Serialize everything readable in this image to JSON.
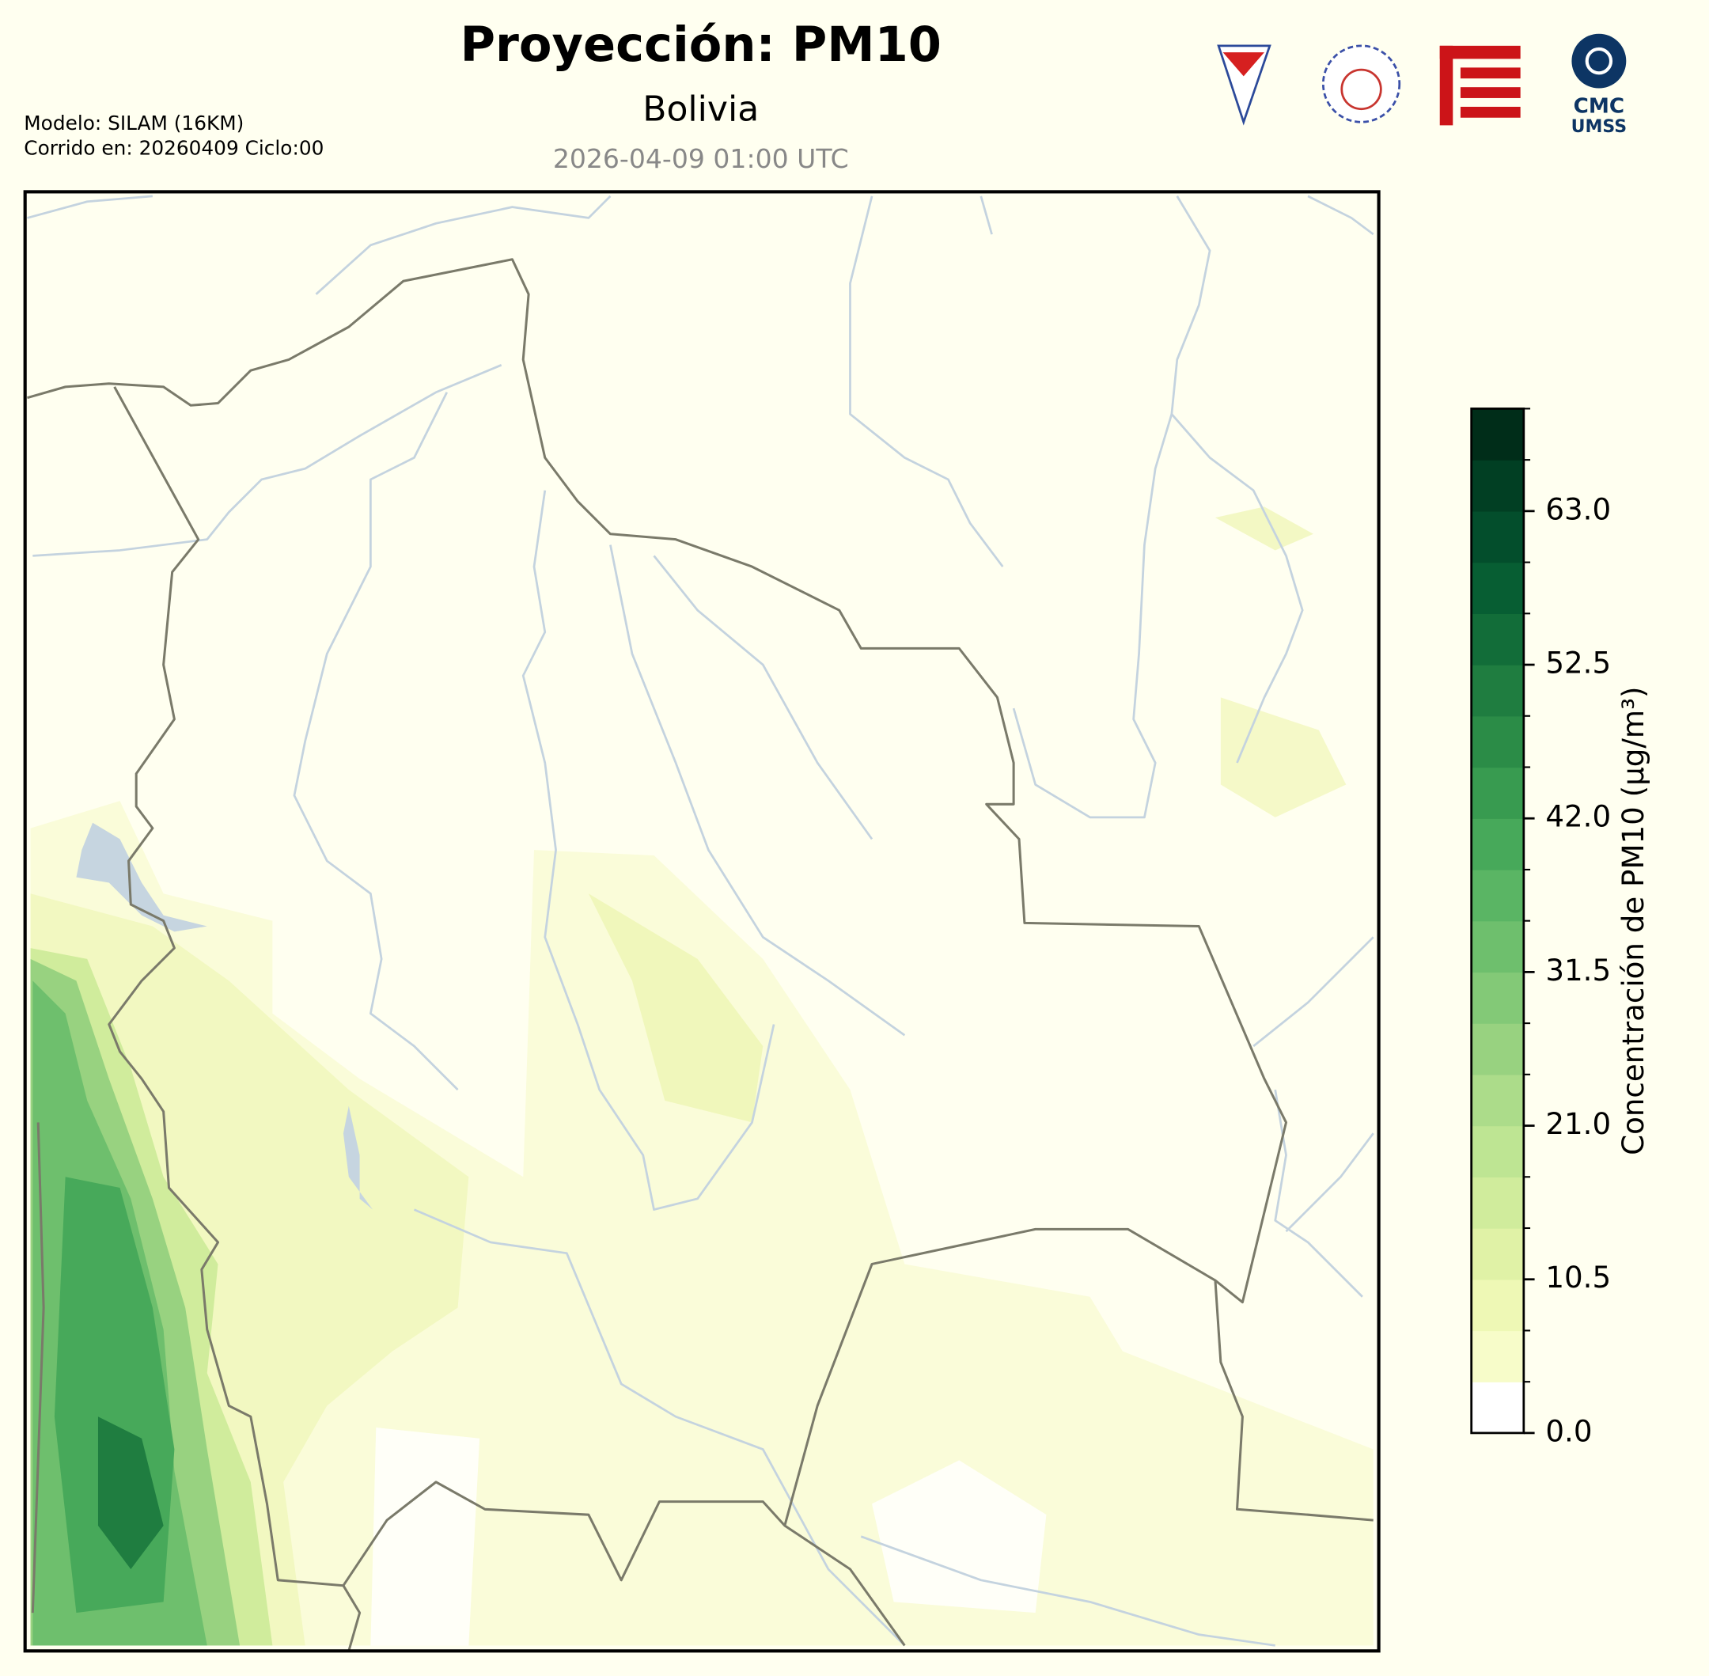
{
  "header": {
    "title": "Proyección: PM10",
    "subtitle": "Bolivia",
    "timestamp": "2026-04-09 01:00 UTC",
    "model": "Modelo: SILAM (16KM)",
    "run": "Corrido en: 20260409 Ciclo:00"
  },
  "logos": {
    "cmc": "CMC",
    "umss": "UMSS"
  },
  "colorbar": {
    "label": "Concentración de PM10 (μg/m³)",
    "levels": [
      0,
      3.5,
      7,
      10.5,
      14,
      17.5,
      21,
      24.5,
      28,
      31.5,
      35,
      38.5,
      42,
      45.5,
      49,
      52.5,
      56,
      59.5,
      63,
      66.5,
      70
    ],
    "colors": [
      "#ffffff",
      "#f7fcc9",
      "#eef8b5",
      "#e0f2a6",
      "#d0ec9c",
      "#bee593",
      "#acdc8a",
      "#98d280",
      "#83c977",
      "#6ebf6d",
      "#5ab564",
      "#47a95a",
      "#389b50",
      "#2b8c47",
      "#1f7d40",
      "#126d39",
      "#075e33",
      "#034e2c",
      "#013f23",
      "#002d19"
    ],
    "ticks": [
      {
        "value": 0,
        "label": "0.0"
      },
      {
        "value": 10.5,
        "label": "10.5"
      },
      {
        "value": 21,
        "label": "21.0"
      },
      {
        "value": 31.5,
        "label": "31.5"
      },
      {
        "value": 42,
        "label": "42.0"
      },
      {
        "value": 52.5,
        "label": "52.5"
      },
      {
        "value": 63,
        "label": "63.0"
      }
    ]
  }
}
